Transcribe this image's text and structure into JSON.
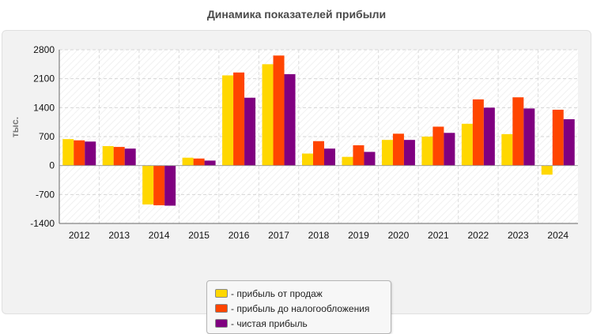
{
  "chart_data": {
    "type": "bar",
    "title": "Динамика показателей прибыли",
    "ylabel": "тыс.",
    "xlabel": "",
    "ylim": [
      -1400,
      2800
    ],
    "yticks": [
      "2800",
      "2100",
      "1400",
      "700",
      "0",
      "-700",
      "-1400"
    ],
    "ytick_values": [
      2800,
      2100,
      1400,
      700,
      0,
      -700,
      -1400
    ],
    "categories": [
      "2012",
      "2013",
      "2014",
      "2015",
      "2016",
      "2017",
      "2018",
      "2019",
      "2020",
      "2021",
      "2022",
      "2023",
      "2024"
    ],
    "grid": true,
    "legend_position": "bottom-center",
    "series": [
      {
        "name": "- прибыль от продаж",
        "color": "#FFD700",
        "values": [
          640,
          470,
          -940,
          190,
          2180,
          2450,
          290,
          210,
          620,
          700,
          1010,
          760,
          -220
        ]
      },
      {
        "name": "- прибыль до налогообложения",
        "color": "#FF4500",
        "values": [
          610,
          450,
          -960,
          170,
          2250,
          2660,
          590,
          490,
          770,
          940,
          1600,
          1650,
          1350
        ]
      },
      {
        "name": "- чистая прибыль",
        "color": "#800080",
        "values": [
          580,
          410,
          -970,
          120,
          1640,
          2210,
          410,
          330,
          620,
          790,
          1400,
          1380,
          1120
        ]
      }
    ]
  }
}
